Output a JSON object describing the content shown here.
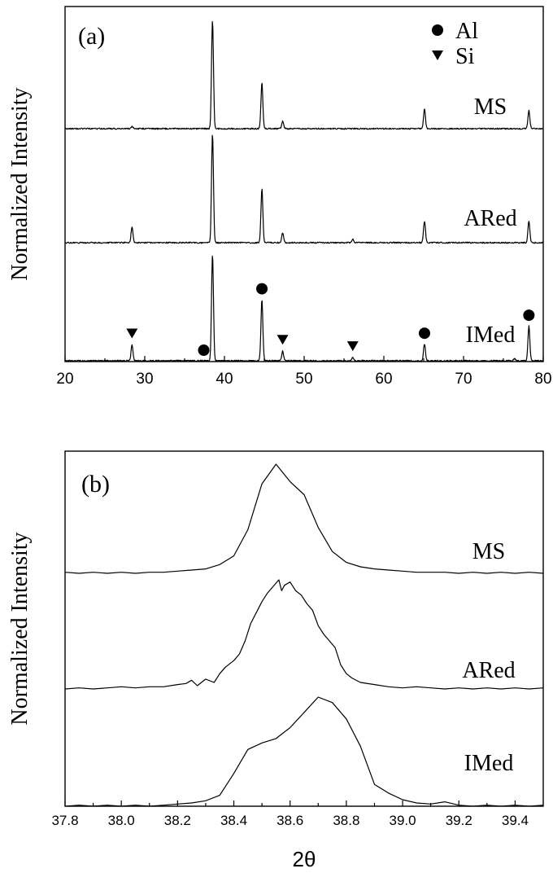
{
  "chart_data": [
    {
      "type": "line",
      "panel_label": "(a)",
      "xlabel": "",
      "ylabel": "Normalized Intensity",
      "xlim": [
        20,
        80
      ],
      "xticks": [
        "20",
        "30",
        "40",
        "50",
        "60",
        "70",
        "80"
      ],
      "yticks": "none",
      "legend": {
        "placement": "top-right",
        "entries": [
          {
            "marker": "circle",
            "label": "Al"
          },
          {
            "marker": "triangle-down",
            "label": "Si"
          }
        ]
      },
      "series": [
        {
          "name": "MS",
          "peaks": [
            [
              28.4,
              0.02
            ],
            [
              38.5,
              1.0
            ],
            [
              44.7,
              0.42
            ],
            [
              47.3,
              0.07
            ],
            [
              65.1,
              0.18
            ],
            [
              78.2,
              0.17
            ]
          ]
        },
        {
          "name": "ARed",
          "peaks": [
            [
              28.4,
              0.14
            ],
            [
              38.5,
              1.0
            ],
            [
              44.7,
              0.5
            ],
            [
              47.3,
              0.09
            ],
            [
              56.1,
              0.03
            ],
            [
              65.1,
              0.2
            ],
            [
              78.2,
              0.2
            ]
          ]
        },
        {
          "name": "IMed",
          "peaks": [
            [
              28.4,
              0.15
            ],
            [
              38.5,
              1.0
            ],
            [
              44.7,
              0.58
            ],
            [
              47.3,
              0.09
            ],
            [
              56.1,
              0.03
            ],
            [
              65.1,
              0.16
            ],
            [
              76.4,
              0.02
            ],
            [
              78.2,
              0.33
            ]
          ]
        }
      ],
      "peak_markers": [
        {
          "phase": "Al",
          "x": [
            37.4,
            44.7,
            65.1,
            78.2
          ]
        },
        {
          "phase": "Si",
          "x": [
            28.4,
            47.3,
            56.1
          ]
        }
      ]
    },
    {
      "type": "line",
      "panel_label": "(b)",
      "xlabel": "2θ",
      "ylabel": "Normalized Intensity",
      "xlim": [
        37.8,
        39.5
      ],
      "xticks": [
        "37.8",
        "38.0",
        "38.2",
        "38.4",
        "38.6",
        "38.8",
        "39.0",
        "39.2",
        "39.4"
      ],
      "yticks": "none",
      "series": [
        {
          "name": "MS",
          "x": [
            37.8,
            37.85,
            37.9,
            37.95,
            38.0,
            38.05,
            38.1,
            38.15,
            38.2,
            38.25,
            38.3,
            38.35,
            38.4,
            38.45,
            38.5,
            38.55,
            38.6,
            38.65,
            38.7,
            38.75,
            38.8,
            38.85,
            38.9,
            38.95,
            39.0,
            39.05,
            39.1,
            39.15,
            39.2,
            39.25,
            39.3,
            39.35,
            39.4,
            39.45,
            39.5
          ],
          "y": [
            0.01,
            0.0,
            0.01,
            0.0,
            0.01,
            0.0,
            0.01,
            0.01,
            0.02,
            0.03,
            0.04,
            0.08,
            0.16,
            0.4,
            0.82,
            1.0,
            0.84,
            0.72,
            0.42,
            0.2,
            0.1,
            0.06,
            0.04,
            0.03,
            0.02,
            0.01,
            0.01,
            0.01,
            0.0,
            0.01,
            0.0,
            0.01,
            0.0,
            0.01,
            0.0
          ]
        },
        {
          "name": "ARed",
          "x": [
            37.8,
            37.85,
            37.9,
            37.95,
            38.0,
            38.05,
            38.1,
            38.15,
            38.2,
            38.23,
            38.25,
            38.27,
            38.3,
            38.33,
            38.35,
            38.37,
            38.4,
            38.42,
            38.44,
            38.46,
            38.48,
            38.5,
            38.52,
            38.54,
            38.56,
            38.57,
            38.58,
            38.6,
            38.62,
            38.64,
            38.66,
            38.68,
            38.7,
            38.72,
            38.74,
            38.76,
            38.78,
            38.8,
            38.82,
            38.85,
            38.9,
            38.95,
            39.0,
            39.05,
            39.1,
            39.15,
            39.2,
            39.25,
            39.3,
            39.35,
            39.4,
            39.45,
            39.5
          ],
          "y": [
            0.0,
            0.01,
            0.0,
            0.01,
            0.02,
            0.01,
            0.02,
            0.02,
            0.04,
            0.05,
            0.08,
            0.03,
            0.09,
            0.06,
            0.14,
            0.2,
            0.26,
            0.32,
            0.44,
            0.6,
            0.7,
            0.8,
            0.88,
            0.94,
            1.0,
            0.9,
            0.95,
            0.98,
            0.9,
            0.86,
            0.78,
            0.72,
            0.58,
            0.5,
            0.44,
            0.38,
            0.22,
            0.14,
            0.1,
            0.06,
            0.04,
            0.02,
            0.01,
            0.02,
            0.01,
            0.0,
            0.01,
            0.0,
            0.01,
            0.0,
            0.01,
            0.0,
            0.01
          ]
        },
        {
          "name": "IMed",
          "x": [
            37.8,
            37.85,
            37.9,
            37.95,
            38.0,
            38.05,
            38.1,
            38.15,
            38.2,
            38.25,
            38.3,
            38.35,
            38.4,
            38.45,
            38.5,
            38.55,
            38.6,
            38.65,
            38.7,
            38.75,
            38.8,
            38.85,
            38.9,
            38.95,
            39.0,
            39.05,
            39.1,
            39.15,
            39.2,
            39.25,
            39.3,
            39.35,
            39.4,
            39.45,
            39.5
          ],
          "y": [
            0.0,
            0.01,
            0.0,
            0.01,
            0.0,
            0.01,
            0.0,
            0.01,
            0.02,
            0.03,
            0.05,
            0.1,
            0.3,
            0.52,
            0.58,
            0.62,
            0.72,
            0.86,
            1.0,
            0.95,
            0.8,
            0.55,
            0.2,
            0.12,
            0.06,
            0.03,
            0.02,
            0.04,
            0.01,
            0.0,
            0.01,
            0.0,
            0.01,
            0.0,
            0.01
          ]
        }
      ]
    }
  ]
}
